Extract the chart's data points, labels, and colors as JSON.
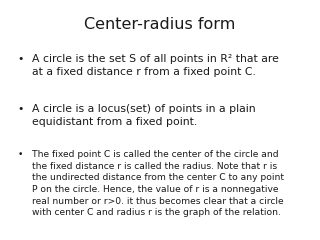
{
  "title": "Center-radius form",
  "background_color": "#ffffff",
  "text_color": "#1a1a1a",
  "title_fontsize": 11.5,
  "bullet_large_fontsize": 7.8,
  "bullet_small_fontsize": 6.6,
  "bullet1_main": "A circle is the set S of all points in R² that are\nat a fixed distance r from a fixed point C.",
  "bullet2_main": "A circle is a locus(set) of points in a plain\nequidistant from a fixed point.",
  "bullet3_main": "The fixed point C is called the center of the circle and\nthe fixed distance r is called the radius. Note that r is\nthe undirected distance from the center C to any point\nP on the circle. Hence, the value of r is a nonnegative\nreal number or r>0. it thus becomes clear that a circle\nwith center C and radius r is the graph of the relation."
}
